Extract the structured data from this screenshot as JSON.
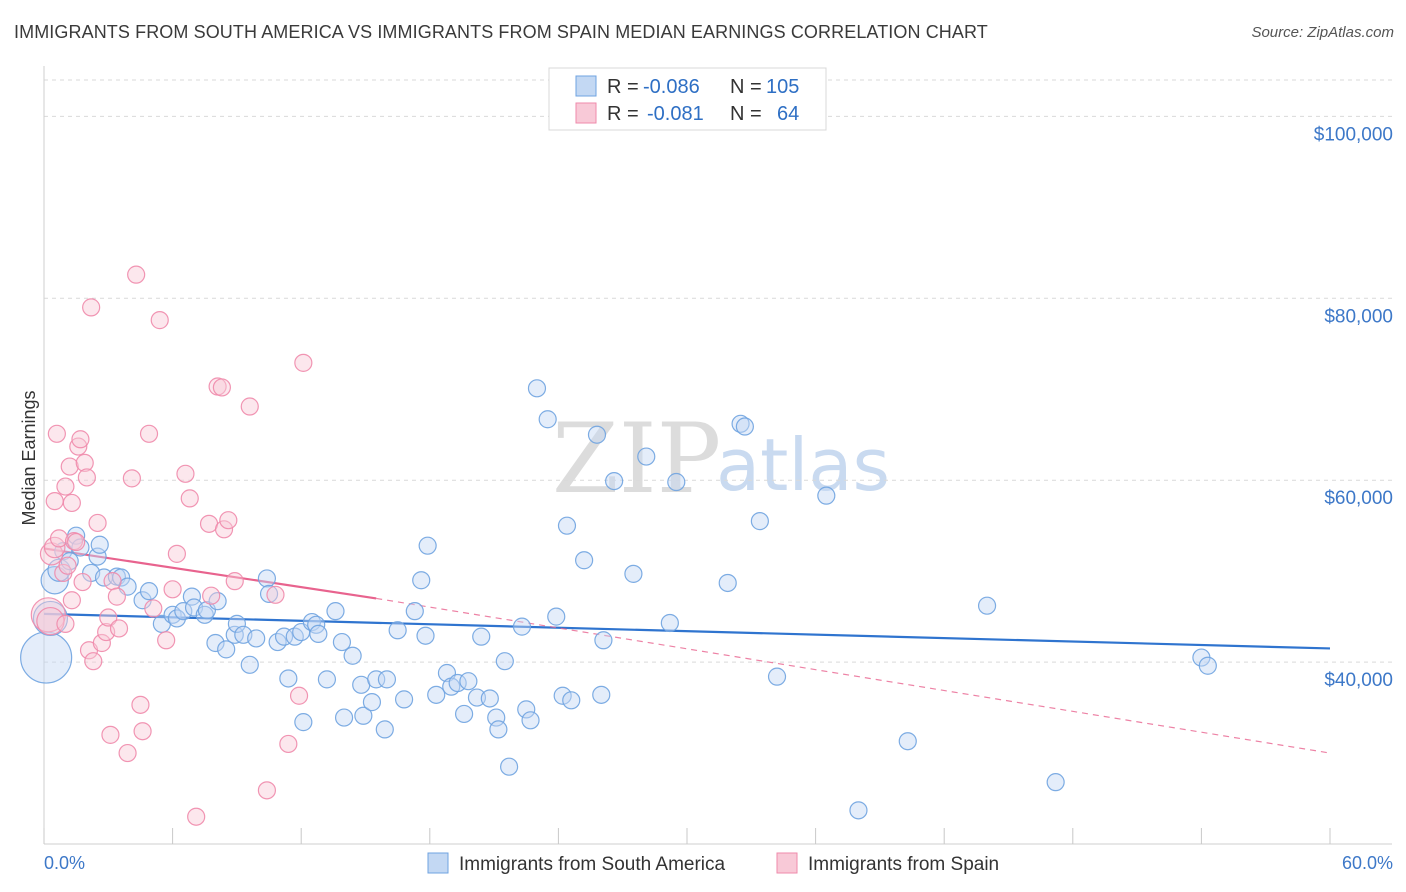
{
  "title": "IMMIGRANTS FROM SOUTH AMERICA VS IMMIGRANTS FROM SPAIN MEDIAN EARNINGS CORRELATION CHART",
  "source": "Source: ZipAtlas.com",
  "watermark": {
    "zip": "ZIP",
    "atlas": "atlas"
  },
  "colors": {
    "blue": "#6fa3e0",
    "blue_fill": "#c3d8f3",
    "blue_line": "#2f74cf",
    "pink": "#ef8aab",
    "pink_fill": "#f8c9d7",
    "pink_line": "#e8638e",
    "grid": "#d9d9d9",
    "tick_text": "#3d78c8"
  },
  "stats": {
    "r_label": "R =",
    "n_label": "N =",
    "rows": [
      {
        "series": "blue",
        "r": "-0.086",
        "n": "105"
      },
      {
        "series": "pink",
        "r": "-0.081",
        "n": "64"
      }
    ]
  },
  "chart_data": {
    "type": "scatter",
    "title": "IMMIGRANTS FROM SOUTH AMERICA VS IMMIGRANTS FROM SPAIN MEDIAN EARNINGS CORRELATION CHART",
    "xlabel": "",
    "ylabel": "Median Earnings",
    "xlim": [
      0,
      60
    ],
    "ylim": [
      20000,
      104000
    ],
    "x_tick_labels": [
      "0.0%",
      "60.0%"
    ],
    "y_ticks": [
      40000,
      60000,
      80000,
      100000
    ],
    "y_tick_labels": [
      "$40,000",
      "$60,000",
      "$80,000",
      "$100,000"
    ],
    "legend": [
      "Immigrants from South America",
      "Immigrants from Spain"
    ],
    "series": [
      {
        "name": "Immigrants from South America",
        "color": "blue",
        "trend": {
          "x0": 0,
          "y0": 45300,
          "x1": 60,
          "y1": 41500
        },
        "points": [
          [
            0.1,
            40500,
            3
          ],
          [
            0.3,
            44800,
            2
          ],
          [
            0.5,
            49000,
            1.6
          ],
          [
            0.7,
            50100,
            1.3
          ],
          [
            0.9,
            52200,
            1
          ],
          [
            1.2,
            51100,
            1
          ],
          [
            1.5,
            53900,
            1
          ],
          [
            1.7,
            52600,
            1
          ],
          [
            2.2,
            49800,
            1
          ],
          [
            2.5,
            51600,
            1
          ],
          [
            2.6,
            52900,
            1
          ],
          [
            2.8,
            49300,
            1
          ],
          [
            3.4,
            49400,
            1
          ],
          [
            3.6,
            49300,
            1
          ],
          [
            3.9,
            48300,
            1
          ],
          [
            4.6,
            46800,
            1
          ],
          [
            4.9,
            47800,
            1
          ],
          [
            5.5,
            44200,
            1
          ],
          [
            6.0,
            45200,
            1
          ],
          [
            6.2,
            44800,
            1
          ],
          [
            6.5,
            45600,
            1
          ],
          [
            6.9,
            47200,
            1
          ],
          [
            7.0,
            46000,
            1
          ],
          [
            7.5,
            45200,
            1
          ],
          [
            7.6,
            45700,
            1
          ],
          [
            8.0,
            42100,
            1
          ],
          [
            8.1,
            46700,
            1
          ],
          [
            8.5,
            41400,
            1
          ],
          [
            8.9,
            43000,
            1
          ],
          [
            9.0,
            44200,
            1
          ],
          [
            9.3,
            43000,
            1
          ],
          [
            9.6,
            39700,
            1
          ],
          [
            9.9,
            42600,
            1
          ],
          [
            10.4,
            49200,
            1
          ],
          [
            10.5,
            47500,
            1
          ],
          [
            10.9,
            42200,
            1
          ],
          [
            11.2,
            42800,
            1
          ],
          [
            11.4,
            38200,
            1
          ],
          [
            11.7,
            42800,
            1
          ],
          [
            12.0,
            43300,
            1
          ],
          [
            12.1,
            33400,
            1
          ],
          [
            12.5,
            44400,
            1
          ],
          [
            12.7,
            44100,
            1
          ],
          [
            12.8,
            43100,
            1
          ],
          [
            13.2,
            38100,
            1
          ],
          [
            13.6,
            45600,
            1
          ],
          [
            13.9,
            42200,
            1
          ],
          [
            14.0,
            33900,
            1
          ],
          [
            14.4,
            40700,
            1
          ],
          [
            14.8,
            37500,
            1
          ],
          [
            14.9,
            34100,
            1
          ],
          [
            15.3,
            35600,
            1
          ],
          [
            15.5,
            38100,
            1
          ],
          [
            15.9,
            32600,
            1
          ],
          [
            16.0,
            38100,
            1
          ],
          [
            16.5,
            43500,
            1
          ],
          [
            16.8,
            35900,
            1
          ],
          [
            17.3,
            45600,
            1
          ],
          [
            17.6,
            49000,
            1
          ],
          [
            17.8,
            42900,
            1
          ],
          [
            17.9,
            52800,
            1
          ],
          [
            18.3,
            36400,
            1
          ],
          [
            18.8,
            38800,
            1
          ],
          [
            19.0,
            37300,
            1
          ],
          [
            19.3,
            37700,
            1
          ],
          [
            19.6,
            34300,
            1
          ],
          [
            19.8,
            37900,
            1
          ],
          [
            20.2,
            36100,
            1
          ],
          [
            20.4,
            42800,
            1
          ],
          [
            20.8,
            36000,
            1
          ],
          [
            21.1,
            33900,
            1
          ],
          [
            21.2,
            32600,
            1
          ],
          [
            21.5,
            40100,
            1
          ],
          [
            21.7,
            28500,
            1
          ],
          [
            22.3,
            43900,
            1
          ],
          [
            22.5,
            34800,
            1
          ],
          [
            22.7,
            33600,
            1
          ],
          [
            23.0,
            70100,
            1
          ],
          [
            23.5,
            66700,
            1
          ],
          [
            23.9,
            45000,
            1
          ],
          [
            24.2,
            36300,
            1
          ],
          [
            24.4,
            55000,
            1
          ],
          [
            24.6,
            35800,
            1
          ],
          [
            25.2,
            51200,
            1
          ],
          [
            25.8,
            65000,
            1
          ],
          [
            26.0,
            36400,
            1
          ],
          [
            26.1,
            42400,
            1
          ],
          [
            26.6,
            59900,
            1
          ],
          [
            27.5,
            49700,
            1
          ],
          [
            28.1,
            62600,
            1
          ],
          [
            29.2,
            44300,
            1
          ],
          [
            29.5,
            59800,
            1
          ],
          [
            31.9,
            48700,
            1
          ],
          [
            32.5,
            66200,
            1
          ],
          [
            32.7,
            65900,
            1
          ],
          [
            33.4,
            55500,
            1
          ],
          [
            34.2,
            38400,
            1
          ],
          [
            36.5,
            58300,
            1
          ],
          [
            38.0,
            23700,
            1
          ],
          [
            40.3,
            31300,
            1
          ],
          [
            44.0,
            46200,
            1
          ],
          [
            47.2,
            26800,
            1
          ],
          [
            54.0,
            40500,
            1
          ],
          [
            54.3,
            39600,
            1
          ]
        ]
      },
      {
        "name": "Immigrants from Spain",
        "color": "pink",
        "trend": {
          "x0": 0,
          "y0": 52500,
          "x1": 15.5,
          "y1": 47000,
          "dash_x1": 60,
          "dash_y1": 30000
        },
        "points": [
          [
            0.2,
            45200,
            2
          ],
          [
            0.3,
            44500,
            1.6
          ],
          [
            0.35,
            51900,
            1.3
          ],
          [
            0.5,
            52600,
            1.2
          ],
          [
            0.5,
            57700,
            1
          ],
          [
            0.6,
            65100,
            1
          ],
          [
            0.7,
            53600,
            1
          ],
          [
            0.9,
            49800,
            1
          ],
          [
            1.0,
            59300,
            1
          ],
          [
            1.0,
            44200,
            1
          ],
          [
            1.1,
            50600,
            1
          ],
          [
            1.2,
            61500,
            1
          ],
          [
            1.3,
            57500,
            1
          ],
          [
            1.3,
            46800,
            1
          ],
          [
            1.4,
            53300,
            1
          ],
          [
            1.5,
            53200,
            1
          ],
          [
            1.6,
            63700,
            1
          ],
          [
            1.7,
            64500,
            1
          ],
          [
            1.8,
            48800,
            1
          ],
          [
            1.9,
            61900,
            1
          ],
          [
            2.0,
            60300,
            1
          ],
          [
            2.1,
            41300,
            1
          ],
          [
            2.2,
            79000,
            1
          ],
          [
            2.3,
            40100,
            1
          ],
          [
            2.5,
            55300,
            1
          ],
          [
            2.7,
            42100,
            1
          ],
          [
            2.9,
            43300,
            1
          ],
          [
            3.0,
            44900,
            1
          ],
          [
            3.1,
            32000,
            1
          ],
          [
            3.2,
            48900,
            1
          ],
          [
            3.4,
            47200,
            1
          ],
          [
            3.5,
            43700,
            1
          ],
          [
            3.9,
            30000,
            1
          ],
          [
            4.1,
            60200,
            1
          ],
          [
            4.3,
            82600,
            1
          ],
          [
            4.5,
            35300,
            1
          ],
          [
            4.6,
            32400,
            1
          ],
          [
            4.9,
            65100,
            1
          ],
          [
            5.1,
            45900,
            1
          ],
          [
            5.4,
            77600,
            1
          ],
          [
            5.7,
            42400,
            1
          ],
          [
            6.0,
            48000,
            1
          ],
          [
            6.2,
            51900,
            1
          ],
          [
            6.6,
            60700,
            1
          ],
          [
            6.8,
            58000,
            1
          ],
          [
            7.1,
            23000,
            1
          ],
          [
            7.7,
            55200,
            1
          ],
          [
            7.8,
            47300,
            1
          ],
          [
            8.1,
            70300,
            1
          ],
          [
            8.3,
            70200,
            1
          ],
          [
            8.4,
            54600,
            1
          ],
          [
            8.6,
            55600,
            1
          ],
          [
            8.9,
            48900,
            1
          ],
          [
            9.6,
            68100,
            1
          ],
          [
            10.4,
            25900,
            1
          ],
          [
            10.8,
            47400,
            1
          ],
          [
            11.4,
            31000,
            1
          ],
          [
            11.9,
            36300,
            1
          ],
          [
            12.1,
            72900,
            1
          ]
        ]
      }
    ]
  }
}
